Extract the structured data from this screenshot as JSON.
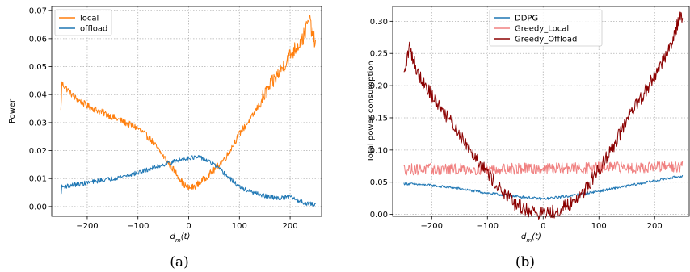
{
  "figure": {
    "caption_a": "(a)",
    "caption_b": "(b)"
  },
  "chart_data": [
    {
      "type": "line",
      "panel": "a",
      "xlabel": "d_m(t)",
      "ylabel": "Power",
      "xlim": [
        -270,
        262
      ],
      "ylim": [
        -0.0035,
        0.0715
      ],
      "xticks": [
        -200,
        -100,
        0,
        100,
        200
      ],
      "yticks": [
        0.0,
        0.01,
        0.02,
        0.03,
        0.04,
        0.05,
        0.06,
        0.07
      ],
      "ytick_labels": [
        "0.00",
        "0.01",
        "0.02",
        "0.03",
        "0.04",
        "0.05",
        "0.06",
        "0.07"
      ],
      "grid": true,
      "legend": "top-left",
      "x_range": [
        -250,
        250
      ],
      "series": [
        {
          "name": "local",
          "color": "#ff7f0e",
          "points": [
            [
              -252,
              0.034
            ],
            [
              -250,
              0.044
            ],
            [
              -225,
              0.039
            ],
            [
              -200,
              0.036
            ],
            [
              -150,
              0.032
            ],
            [
              -100,
              0.028
            ],
            [
              -75,
              0.024
            ],
            [
              -50,
              0.018
            ],
            [
              -25,
              0.012
            ],
            [
              -10,
              0.008
            ],
            [
              0,
              0.0065
            ],
            [
              10,
              0.007
            ],
            [
              25,
              0.009
            ],
            [
              50,
              0.013
            ],
            [
              75,
              0.018
            ],
            [
              100,
              0.026
            ],
            [
              125,
              0.032
            ],
            [
              150,
              0.04
            ],
            [
              175,
              0.047
            ],
            [
              200,
              0.054
            ],
            [
              225,
              0.06
            ],
            [
              238,
              0.067
            ],
            [
              245,
              0.061
            ],
            [
              250,
              0.058
            ]
          ],
          "noise": 0.0012,
          "noise_right": 0.0028
        },
        {
          "name": "offload",
          "color": "#1f77b4",
          "points": [
            [
              -252,
              0.004
            ],
            [
              -250,
              0.007
            ],
            [
              -200,
              0.0085
            ],
            [
              -150,
              0.01
            ],
            [
              -100,
              0.012
            ],
            [
              -50,
              0.015
            ],
            [
              0,
              0.0175
            ],
            [
              25,
              0.0175
            ],
            [
              50,
              0.015
            ],
            [
              75,
              0.011
            ],
            [
              100,
              0.007
            ],
            [
              125,
              0.005
            ],
            [
              150,
              0.0038
            ],
            [
              175,
              0.003
            ],
            [
              200,
              0.0035
            ],
            [
              225,
              0.0015
            ],
            [
              250,
              0.0005
            ]
          ],
          "noise": 0.0008
        }
      ]
    },
    {
      "type": "line",
      "panel": "b",
      "xlabel": "d_m(t)",
      "ylabel": "Total power consumption",
      "xlim": [
        -270,
        262
      ],
      "ylim": [
        -0.003,
        0.323
      ],
      "xticks": [
        -200,
        -100,
        0,
        100,
        200
      ],
      "yticks": [
        0.0,
        0.05,
        0.1,
        0.15,
        0.2,
        0.25,
        0.3
      ],
      "ytick_labels": [
        "0.00",
        "0.05",
        "0.10",
        "0.15",
        "0.20",
        "0.25",
        "0.30"
      ],
      "grid": true,
      "legend": "top-center",
      "x_range": [
        -250,
        250
      ],
      "series": [
        {
          "name": "DDPG",
          "color": "#1f77b4",
          "points": [
            [
              -250,
              0.048
            ],
            [
              -200,
              0.045
            ],
            [
              -150,
              0.04
            ],
            [
              -100,
              0.033
            ],
            [
              -50,
              0.028
            ],
            [
              0,
              0.024
            ],
            [
              50,
              0.029
            ],
            [
              100,
              0.036
            ],
            [
              150,
              0.044
            ],
            [
              200,
              0.052
            ],
            [
              250,
              0.06
            ]
          ],
          "noise": 0.002
        },
        {
          "name": "Greedy_Local",
          "color": "#f08080",
          "points": [
            [
              -250,
              0.07
            ],
            [
              0,
              0.071
            ],
            [
              250,
              0.074
            ]
          ],
          "noise": 0.009
        },
        {
          "name": "Greedy_Offload",
          "color": "#8b0000",
          "points": [
            [
              -250,
              0.215
            ],
            [
              -240,
              0.26
            ],
            [
              -225,
              0.22
            ],
            [
              -200,
              0.185
            ],
            [
              -175,
              0.155
            ],
            [
              -150,
              0.125
            ],
            [
              -125,
              0.095
            ],
            [
              -100,
              0.065
            ],
            [
              -75,
              0.037
            ],
            [
              -50,
              0.015
            ],
            [
              -25,
              0.006
            ],
            [
              0,
              0.001
            ],
            [
              25,
              0.006
            ],
            [
              50,
              0.016
            ],
            [
              75,
              0.038
            ],
            [
              100,
              0.07
            ],
            [
              125,
              0.105
            ],
            [
              150,
              0.145
            ],
            [
              175,
              0.18
            ],
            [
              200,
              0.215
            ],
            [
              225,
              0.255
            ],
            [
              245,
              0.305
            ],
            [
              250,
              0.31
            ]
          ],
          "noise": 0.011
        }
      ]
    }
  ]
}
